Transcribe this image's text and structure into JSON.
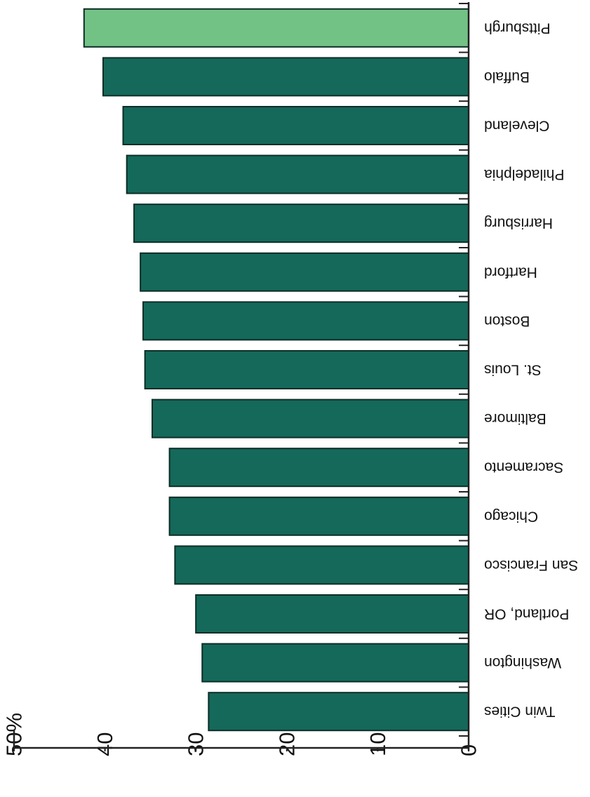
{
  "chart_data": {
    "type": "bar",
    "orientation": "horizontal",
    "display_rotation": "180deg (image appears upside down)",
    "categories": [
      "Pittsburgh",
      "Buffalo",
      "Cleveland",
      "Philadelphia",
      "Harrisburg",
      "Hartford",
      "Boston",
      "St. Louis",
      "Baltimore",
      "Sacramento",
      "Chicago",
      "San Francisco",
      "Portland, OR",
      "Washington",
      "Twin Cities"
    ],
    "values": [
      42.3,
      40.2,
      38.0,
      37.6,
      36.8,
      36.1,
      35.8,
      35.6,
      34.8,
      32.9,
      32.9,
      32.3,
      30.0,
      29.3,
      28.6
    ],
    "xlim": [
      0,
      50
    ],
    "tick_labels": [
      "0",
      "10",
      "20",
      "30",
      "40",
      "50%"
    ],
    "title": "",
    "xlabel": "",
    "ylabel": "",
    "grid": false,
    "legend": "none",
    "colors": {
      "highlight": "#72c286",
      "default": "#14695a",
      "axis": "#222222"
    },
    "highlight_index": 0
  }
}
